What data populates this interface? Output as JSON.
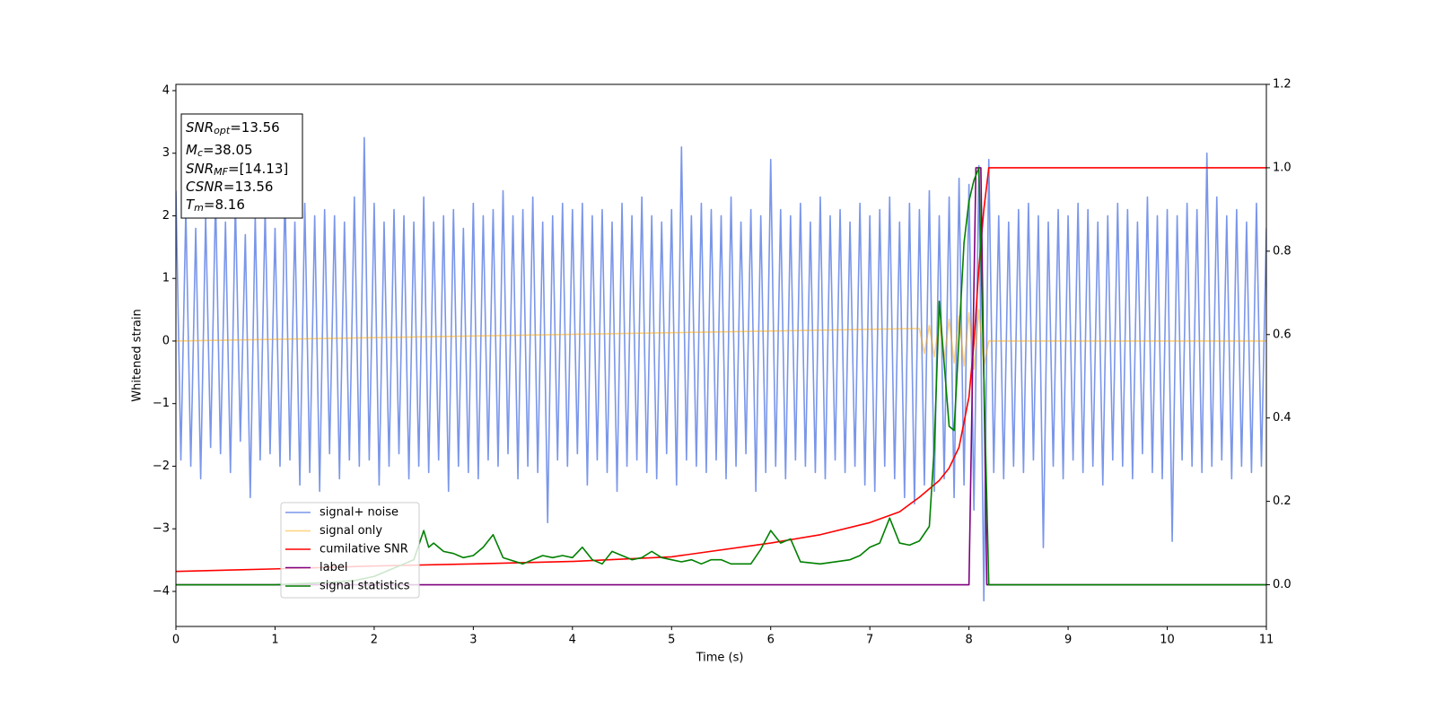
{
  "chart_data": {
    "type": "line",
    "xlabel": "Time (s)",
    "ylabel": "Whitened strain",
    "xlim": [
      0,
      11
    ],
    "xticks": [
      0,
      1,
      2,
      3,
      4,
      5,
      6,
      7,
      8,
      9,
      10,
      11
    ],
    "ylim": [
      -4.56,
      4.1
    ],
    "yticks": [
      {
        "value": -4,
        "label": "−4"
      },
      {
        "value": -3,
        "label": "−3"
      },
      {
        "value": -2,
        "label": "−2"
      },
      {
        "value": -1,
        "label": "−1"
      },
      0,
      1,
      2,
      3,
      4
    ],
    "y2lim": [
      -0.1,
      1.2
    ],
    "y2ticks": [
      {
        "value": 0,
        "label": "0.0"
      },
      {
        "value": 0.2,
        "label": "0.2"
      },
      {
        "value": 0.4,
        "label": "0.4"
      },
      {
        "value": 0.6,
        "label": "0.6"
      },
      {
        "value": 0.8,
        "label": "0.8"
      },
      {
        "value": 1,
        "label": "1.0"
      },
      {
        "value": 1.2,
        "label": "1.2"
      }
    ],
    "legend": "lower left",
    "annotations": [
      {
        "base": "SNR",
        "sub": "opt",
        "rest": "=13.56"
      },
      {
        "base": "M",
        "sub": "c",
        "rest": "=38.05"
      },
      {
        "base": "SNR",
        "sub": "MF",
        "rest": "=[14.13]"
      },
      {
        "base": "CSNR",
        "rest": "=13.56"
      },
      {
        "base": "T",
        "sub": "m",
        "rest": "=8.16"
      }
    ],
    "series": [
      {
        "name": "signal+ noise",
        "color": "#4169e1",
        "alpha": 0.7,
        "x": [
          0,
          0.05,
          0.1,
          0.15,
          0.2,
          0.25,
          0.3,
          0.35,
          0.4,
          0.45,
          0.5,
          0.55,
          0.6,
          0.65,
          0.7,
          0.75,
          0.8,
          0.85,
          0.9,
          0.95,
          1,
          1.05,
          1.1,
          1.15,
          1.2,
          1.25,
          1.3,
          1.35,
          1.4,
          1.45,
          1.5,
          1.55,
          1.6,
          1.65,
          1.7,
          1.75,
          1.8,
          1.85,
          1.9,
          1.95,
          2,
          2.05,
          2.1,
          2.15,
          2.2,
          2.25,
          2.3,
          2.35,
          2.4,
          2.45,
          2.5,
          2.55,
          2.6,
          2.65,
          2.7,
          2.75,
          2.8,
          2.85,
          2.9,
          2.95,
          3,
          3.05,
          3.1,
          3.15,
          3.2,
          3.25,
          3.3,
          3.35,
          3.4,
          3.45,
          3.5,
          3.55,
          3.6,
          3.65,
          3.7,
          3.75,
          3.8,
          3.85,
          3.9,
          3.95,
          4,
          4.05,
          4.1,
          4.15,
          4.2,
          4.25,
          4.3,
          4.35,
          4.4,
          4.45,
          4.5,
          4.55,
          4.6,
          4.65,
          4.7,
          4.75,
          4.8,
          4.85,
          4.9,
          4.95,
          5,
          5.05,
          5.1,
          5.15,
          5.2,
          5.25,
          5.3,
          5.35,
          5.4,
          5.45,
          5.5,
          5.55,
          5.6,
          5.65,
          5.7,
          5.75,
          5.8,
          5.85,
          5.9,
          5.95,
          6,
          6.05,
          6.1,
          6.15,
          6.2,
          6.25,
          6.3,
          6.35,
          6.4,
          6.45,
          6.5,
          6.55,
          6.6,
          6.65,
          6.7,
          6.75,
          6.8,
          6.85,
          6.9,
          6.95,
          7,
          7.05,
          7.1,
          7.15,
          7.2,
          7.25,
          7.3,
          7.35,
          7.4,
          7.45,
          7.5,
          7.55,
          7.6,
          7.65,
          7.7,
          7.75,
          7.8,
          7.85,
          7.9,
          7.95,
          8,
          8.05,
          8.1,
          8.15,
          8.2,
          8.25,
          8.3,
          8.35,
          8.4,
          8.45,
          8.5,
          8.55,
          8.6,
          8.65,
          8.7,
          8.75,
          8.8,
          8.85,
          8.9,
          8.95,
          9,
          9.05,
          9.1,
          9.15,
          9.2,
          9.25,
          9.3,
          9.35,
          9.4,
          9.45,
          9.5,
          9.55,
          9.6,
          9.65,
          9.7,
          9.75,
          9.8,
          9.85,
          9.9,
          9.95,
          10,
          10.05,
          10.1,
          10.15,
          10.2,
          10.25,
          10.3,
          10.35,
          10.4,
          10.45,
          10.5,
          10.55,
          10.6,
          10.65,
          10.7,
          10.75,
          10.8,
          10.85,
          10.9,
          10.95,
          11
        ],
        "values": [
          2.4,
          -1.9,
          2.1,
          -2.0,
          1.8,
          -2.2,
          2.0,
          -1.7,
          2.3,
          -1.8,
          1.9,
          -2.1,
          2.2,
          -1.6,
          1.7,
          -2.5,
          2.0,
          -1.9,
          2.1,
          -1.8,
          1.8,
          -2.0,
          2.4,
          -1.9,
          1.9,
          -2.3,
          2.2,
          -2.1,
          2.0,
          -2.4,
          2.1,
          -1.8,
          2.0,
          -2.2,
          1.9,
          -1.9,
          2.3,
          -2.0,
          3.25,
          -1.9,
          2.2,
          -2.3,
          1.9,
          -2.0,
          2.1,
          -1.8,
          2.0,
          -2.2,
          1.9,
          -2.0,
          2.3,
          -2.1,
          1.9,
          -1.9,
          2.0,
          -2.4,
          2.1,
          -2.0,
          1.8,
          -2.1,
          2.2,
          -2.2,
          2.0,
          -1.9,
          2.1,
          -2.0,
          2.4,
          -1.8,
          2.0,
          -2.2,
          2.1,
          -2.0,
          2.3,
          -2.1,
          1.9,
          -2.9,
          2.0,
          -1.9,
          2.2,
          -2.0,
          2.1,
          -1.8,
          2.2,
          -2.3,
          2.0,
          -1.9,
          2.1,
          -2.1,
          1.9,
          -2.4,
          2.2,
          -2.0,
          2.0,
          -1.9,
          2.3,
          -2.1,
          2.0,
          -2.2,
          1.9,
          -1.8,
          2.1,
          -2.3,
          3.1,
          -1.9,
          2.0,
          -2.0,
          2.2,
          -2.1,
          2.1,
          -1.9,
          2.0,
          -2.2,
          2.3,
          -2.0,
          1.9,
          -1.8,
          2.1,
          -2.4,
          2.0,
          -2.1,
          2.9,
          -2.0,
          2.1,
          -2.2,
          2.0,
          -1.9,
          2.2,
          -2.0,
          1.9,
          -2.1,
          2.3,
          -2.2,
          2.0,
          -1.9,
          2.1,
          -2.1,
          1.9,
          -2.0,
          2.2,
          -2.3,
          2.0,
          -2.4,
          2.1,
          -2.0,
          2.3,
          -2.2,
          1.9,
          -2.5,
          2.2,
          -2.6,
          2.1,
          -2.3,
          2.4,
          -2.4,
          2.0,
          -2.2,
          2.3,
          -2.5,
          2.6,
          -2.3,
          2.5,
          -2.7,
          2.8,
          -4.15,
          2.9,
          -2.1,
          2.0,
          -2.2,
          1.9,
          -2.0,
          2.1,
          -2.1,
          2.2,
          -1.9,
          2.0,
          -3.3,
          1.9,
          -2.0,
          2.1,
          -2.2,
          2.0,
          -1.9,
          2.2,
          -2.1,
          2.1,
          -2.0,
          1.9,
          -2.3,
          2.0,
          -1.9,
          2.2,
          -2.0,
          2.1,
          -2.2,
          1.9,
          -1.8,
          2.3,
          -2.1,
          2.0,
          -2.2,
          2.1,
          -3.2,
          2.0,
          -1.9,
          2.2,
          -2.0,
          2.1,
          -2.1,
          3.0,
          -2.0,
          2.3,
          -1.9,
          2.0,
          -2.2,
          2.1,
          -2.0,
          1.9,
          -2.1,
          2.2,
          -2.0,
          1.8
        ]
      },
      {
        "name": "signal only",
        "color": "#ffa500",
        "alpha": 0.5,
        "x": [
          0,
          7.5,
          7.55,
          7.6,
          7.65,
          7.7,
          7.75,
          7.8,
          7.85,
          7.9,
          7.95,
          8,
          8.05,
          8.1,
          8.15,
          8.2,
          11
        ],
        "values": [
          0,
          0.2,
          -0.2,
          0.25,
          -0.25,
          0.3,
          -0.3,
          0.35,
          -0.35,
          0.4,
          -0.4,
          0.45,
          -0.45,
          0.5,
          -0.4,
          0,
          0
        ]
      },
      {
        "name": "cumilative SNR",
        "color": "#ff0000",
        "alpha": 1,
        "axis": "y2",
        "x": [
          0,
          1,
          2,
          3,
          4,
          5,
          6,
          6.5,
          7,
          7.3,
          7.5,
          7.7,
          7.8,
          7.9,
          8,
          8.05,
          8.1,
          8.15,
          8.2,
          11
        ],
        "values": [
          0.032,
          0.038,
          0.045,
          0.05,
          0.056,
          0.067,
          0.1,
          0.12,
          0.149,
          0.175,
          0.21,
          0.25,
          0.28,
          0.33,
          0.45,
          0.58,
          0.76,
          0.9,
          1,
          1
        ]
      },
      {
        "name": "label",
        "color": "#800080",
        "alpha": 1,
        "axis": "y2",
        "x": [
          0,
          8,
          8.07,
          8.12,
          8.18,
          11
        ],
        "values": [
          0,
          0,
          1,
          1,
          0,
          0
        ]
      },
      {
        "name": "signal statistics",
        "color": "#008000",
        "alpha": 1,
        "axis": "y2",
        "x": [
          0,
          1,
          1.5,
          1.8,
          2,
          2.2,
          2.3,
          2.4,
          2.5,
          2.55,
          2.6,
          2.7,
          2.8,
          2.9,
          3,
          3.1,
          3.2,
          3.3,
          3.5,
          3.6,
          3.7,
          3.8,
          3.9,
          4,
          4.1,
          4.2,
          4.3,
          4.4,
          4.5,
          4.6,
          4.7,
          4.8,
          4.9,
          5,
          5.1,
          5.2,
          5.3,
          5.4,
          5.5,
          5.6,
          5.7,
          5.8,
          5.9,
          6,
          6.1,
          6.2,
          6.3,
          6.5,
          6.8,
          6.9,
          7,
          7.1,
          7.2,
          7.3,
          7.4,
          7.5,
          7.6,
          7.65,
          7.7,
          7.8,
          7.85,
          7.95,
          8,
          8.05,
          8.1,
          8.2,
          8.25,
          11
        ],
        "values": [
          0,
          0,
          0.005,
          0.01,
          0.02,
          0.04,
          0.05,
          0.06,
          0.13,
          0.09,
          0.1,
          0.08,
          0.075,
          0.065,
          0.07,
          0.09,
          0.12,
          0.065,
          0.05,
          0.06,
          0.07,
          0.065,
          0.07,
          0.065,
          0.09,
          0.06,
          0.05,
          0.08,
          0.07,
          0.06,
          0.065,
          0.08,
          0.065,
          0.06,
          0.055,
          0.06,
          0.05,
          0.06,
          0.06,
          0.05,
          0.05,
          0.05,
          0.085,
          0.13,
          0.1,
          0.11,
          0.055,
          0.05,
          0.06,
          0.07,
          0.09,
          0.1,
          0.16,
          0.1,
          0.095,
          0.105,
          0.14,
          0.33,
          0.68,
          0.38,
          0.37,
          0.82,
          0.92,
          0.97,
          1,
          0,
          0,
          0
        ]
      }
    ]
  }
}
